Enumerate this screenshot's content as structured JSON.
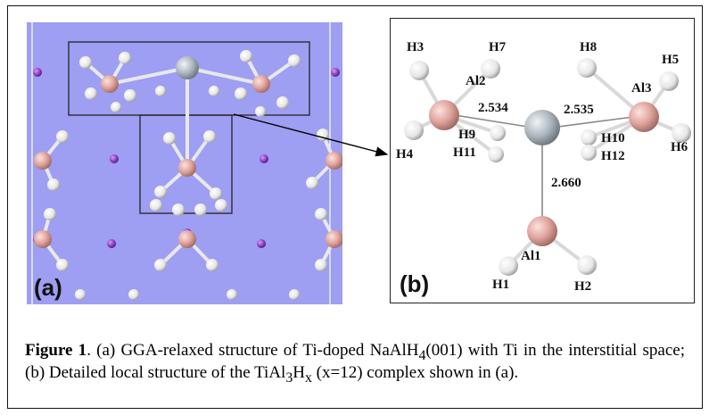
{
  "panel_a": {
    "label": "(a)"
  },
  "panel_b": {
    "label": "(b)",
    "atoms": {
      "h3": "H3",
      "h7": "H7",
      "h8": "H8",
      "h5": "H5",
      "al2": "Al2",
      "al3": "Al3",
      "h4": "H4",
      "h9": "H9",
      "h11": "H11",
      "h10": "H10",
      "h12": "H12",
      "h6": "H6",
      "al1": "Al1",
      "h1": "H1",
      "h2": "H2"
    },
    "distances": {
      "ti_al2": "2.534",
      "ti_al3": "2.535",
      "ti_al1": "2.660"
    }
  },
  "caption": {
    "label": "Figure 1",
    "text_1": ". (a) GGA-relaxed structure of Ti-doped NaAlH",
    "sub_1": "4",
    "text_2": "(001) with Ti in the interstitial space; (b) Detailed local structure of the TiAl",
    "sub_2": "3",
    "text_3": "H",
    "sub_3": "x",
    "text_4": " (x=12) complex shown in (a)."
  },
  "colors": {
    "background_a": "#9e9ef2",
    "al": "#e3a8a3",
    "h": "#f2f2f2",
    "ti": "#b7bfc6",
    "na": "#8b3fc4"
  }
}
